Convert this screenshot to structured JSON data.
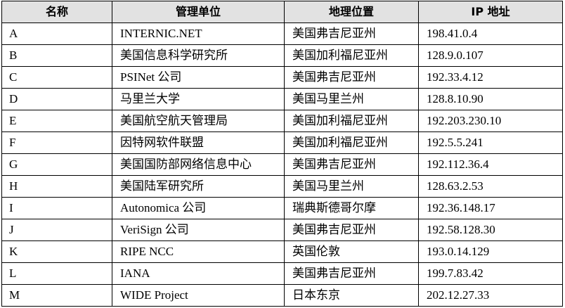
{
  "table": {
    "headers": [
      "名称",
      "管理单位",
      "地理位置",
      "IP 地址"
    ],
    "rows": [
      [
        "A",
        "INTERNIC.NET",
        "美国弗吉尼亚州",
        "198.41.0.4"
      ],
      [
        "B",
        "美国信息科学研究所",
        "美国加利福尼亚州",
        "128.9.0.107"
      ],
      [
        "C",
        "PSINet 公司",
        "美国弗吉尼亚州",
        "192.33.4.12"
      ],
      [
        "D",
        "马里兰大学",
        "美国马里兰州",
        "128.8.10.90"
      ],
      [
        "E",
        "美国航空航天管理局",
        "美国加利福尼亚州",
        "192.203.230.10"
      ],
      [
        "F",
        "因特网软件联盟",
        "美国加利福尼亚州",
        "192.5.5.241"
      ],
      [
        "G",
        "美国国防部网络信息中心",
        "美国弗吉尼亚州",
        "192.112.36.4"
      ],
      [
        "H",
        "美国陆军研究所",
        "美国马里兰州",
        "128.63.2.53"
      ],
      [
        "I",
        "Autonomica 公司",
        "瑞典斯德哥尔摩",
        "192.36.148.17"
      ],
      [
        "J",
        "VeriSign 公司",
        "美国弗吉尼亚州",
        "192.58.128.30"
      ],
      [
        "K",
        "RIPE NCC",
        "英国伦敦",
        "193.0.14.129"
      ],
      [
        "L",
        "IANA",
        "美国弗吉尼亚州",
        "199.7.83.42"
      ],
      [
        "M",
        "WIDE Project",
        "日本东京",
        "202.12.27.33"
      ]
    ]
  },
  "colors": {
    "header_bg": "#e2e2e2",
    "border": "#000000",
    "text": "#000000"
  }
}
